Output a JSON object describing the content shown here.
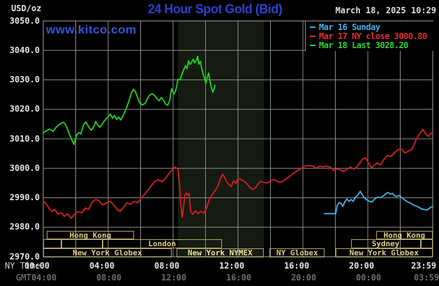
{
  "header": {
    "title": "24 Hour Spot Gold (Bid)",
    "title_color": "#2e3fd0",
    "datetime": "March 18, 2025 10:29",
    "unit": "USD/oz",
    "watermark": "www.kitco.com",
    "watermark_color": "#3a54d6"
  },
  "legend": {
    "items": [
      {
        "label": "Mar 16 Sunday",
        "color": "#41b2e8"
      },
      {
        "label": "Mar 17 NY close 3000.80",
        "color": "#e62c2c"
      },
      {
        "label": "Mar 18 Last 3028.20",
        "color": "#2fd32f"
      }
    ]
  },
  "axis": {
    "ny_label": "NY Time",
    "gmt_label": "GMT",
    "ny_ticks": [
      "00:00",
      "04:00",
      "08:00",
      "12:00",
      "16:00",
      "20:00",
      "23:59"
    ],
    "gmt_ticks": [
      "04:00",
      "08:00",
      "12:00",
      "16:00",
      "20:00",
      "00:00",
      "03:59"
    ]
  },
  "sessions": [
    {
      "row": 1,
      "label": "Hong Kong",
      "start_hour": 0.2,
      "end_hour": 5.6
    },
    {
      "row": 1,
      "label": "Hong Kong",
      "start_hour": 20.5,
      "end_hour": 24
    },
    {
      "row": 2,
      "label": "",
      "start_hour": 0,
      "end_hour": 1.1
    },
    {
      "row": 2,
      "label": "",
      "start_hour": 1.1,
      "end_hour": 3.65
    },
    {
      "row": 2,
      "label": "London",
      "start_hour": 3.65,
      "end_hour": 11.0
    },
    {
      "row": 2,
      "label": "Sydney",
      "start_hour": 18.95,
      "end_hour": 23.25
    },
    {
      "row": 2,
      "label": "",
      "start_hour": 23.25,
      "end_hour": 24
    },
    {
      "row": 3,
      "label": "New York Globex",
      "start_hour": 0,
      "end_hour": 7.9
    },
    {
      "row": 3,
      "label": "New York NYMEX",
      "start_hour": 8.2,
      "end_hour": 13.6,
      "highlight": true
    },
    {
      "row": 3,
      "label": "NY Globex",
      "start_hour": 13.95,
      "end_hour": 17.35
    },
    {
      "row": 3,
      "label": "New York Globex",
      "start_hour": 18.0,
      "end_hour": 24
    }
  ],
  "chart_data": {
    "type": "line",
    "title": "24 Hour Spot Gold (Bid)",
    "xlabel": "NY Time",
    "ylabel": "USD/oz",
    "x_range_hours": [
      0,
      24
    ],
    "x_tick_hours": [
      0,
      4,
      8,
      12,
      16,
      20,
      24
    ],
    "grid_x_interval_hours": 2,
    "grid_y_interval": 10,
    "grid_color": "#8c8c8c",
    "ylim": [
      2970,
      3050
    ],
    "yticks": [
      3050.0,
      3040.0,
      3030.0,
      3020.0,
      3010.0,
      3000.0,
      2990.0,
      2980.0,
      2970.0
    ],
    "highlight_band_hours": [
      8.3,
      13.6
    ],
    "highlight_band_color": "#151b11",
    "legend_position": "top-right",
    "series": [
      {
        "name": "Mar 16 Sunday",
        "color": "#45b4e6",
        "points": [
          [
            17.33,
            2984.6
          ],
          [
            18.02,
            2984.6
          ],
          [
            18.11,
            2987.3
          ],
          [
            18.24,
            2988.4
          ],
          [
            18.37,
            2988.0
          ],
          [
            18.45,
            2987.0
          ],
          [
            18.58,
            2988.6
          ],
          [
            18.71,
            2989.6
          ],
          [
            18.84,
            2988.8
          ],
          [
            18.97,
            2989.4
          ],
          [
            19.1,
            2988.8
          ],
          [
            19.23,
            2990.2
          ],
          [
            19.4,
            2991.0
          ],
          [
            19.53,
            2992.2
          ],
          [
            19.66,
            2991.0
          ],
          [
            19.78,
            2990.0
          ],
          [
            19.91,
            2989.4
          ],
          [
            20.09,
            2988.8
          ],
          [
            20.26,
            2988.6
          ],
          [
            20.43,
            2989.6
          ],
          [
            20.6,
            2990.2
          ],
          [
            20.77,
            2990.0
          ],
          [
            20.95,
            2990.6
          ],
          [
            21.12,
            2991.4
          ],
          [
            21.25,
            2991.8
          ],
          [
            21.38,
            2991.2
          ],
          [
            21.51,
            2991.5
          ],
          [
            21.63,
            2990.8
          ],
          [
            21.76,
            2990.4
          ],
          [
            21.94,
            2990.8
          ],
          [
            22.11,
            2990.0
          ],
          [
            22.28,
            2989.2
          ],
          [
            22.45,
            2988.6
          ],
          [
            22.62,
            2988.2
          ],
          [
            22.8,
            2987.6
          ],
          [
            22.97,
            2987.2
          ],
          [
            23.14,
            2986.8
          ],
          [
            23.31,
            2986.2
          ],
          [
            23.48,
            2986.0
          ],
          [
            23.66,
            2985.8
          ],
          [
            23.78,
            2986.4
          ],
          [
            23.91,
            2986.9
          ],
          [
            24,
            2987.0
          ]
        ]
      },
      {
        "name": "Mar 17 NY close 3000.80",
        "color": "#dd1c1c",
        "points": [
          [
            0,
            2988.9
          ],
          [
            0.22,
            2987.6
          ],
          [
            0.34,
            2986.5
          ],
          [
            0.56,
            2985.3
          ],
          [
            0.69,
            2986.1
          ],
          [
            0.9,
            2984.5
          ],
          [
            1.12,
            2984.9
          ],
          [
            1.29,
            2983.7
          ],
          [
            1.51,
            2984.5
          ],
          [
            1.72,
            2983.0
          ],
          [
            1.94,
            2984.5
          ],
          [
            2.15,
            2985.3
          ],
          [
            2.37,
            2984.9
          ],
          [
            2.58,
            2986.5
          ],
          [
            2.8,
            2986.1
          ],
          [
            3.01,
            2988.5
          ],
          [
            3.23,
            2989.4
          ],
          [
            3.44,
            2989.0
          ],
          [
            3.66,
            2987.6
          ],
          [
            3.87,
            2988.2
          ],
          [
            4.13,
            2988.8
          ],
          [
            4.34,
            2987.5
          ],
          [
            4.56,
            2986.0
          ],
          [
            4.73,
            2985.4
          ],
          [
            4.95,
            2986.8
          ],
          [
            5.16,
            2988.3
          ],
          [
            5.38,
            2987.8
          ],
          [
            5.59,
            2988.8
          ],
          [
            5.81,
            2988.3
          ],
          [
            6.06,
            2990.0
          ],
          [
            6.37,
            2992.0
          ],
          [
            6.67,
            2994.2
          ],
          [
            6.88,
            2995.6
          ],
          [
            7.1,
            2996.1
          ],
          [
            7.31,
            2995.4
          ],
          [
            7.53,
            2996.6
          ],
          [
            7.74,
            2998.2
          ],
          [
            7.96,
            2999.6
          ],
          [
            8.13,
            3000.4
          ],
          [
            8.3,
            2999.8
          ],
          [
            8.39,
            2995.0
          ],
          [
            8.47,
            2988.0
          ],
          [
            8.56,
            2983.4
          ],
          [
            8.65,
            2987.0
          ],
          [
            8.73,
            2991.0
          ],
          [
            8.82,
            2991.6
          ],
          [
            8.9,
            2990.8
          ],
          [
            8.99,
            2991.5
          ],
          [
            9.08,
            2985.5
          ],
          [
            9.2,
            2984.4
          ],
          [
            9.38,
            2985.6
          ],
          [
            9.55,
            2984.6
          ],
          [
            9.72,
            2985.4
          ],
          [
            9.89,
            2984.8
          ],
          [
            10.06,
            2986.5
          ],
          [
            10.24,
            2989.5
          ],
          [
            10.41,
            2991.0
          ],
          [
            10.58,
            2992.3
          ],
          [
            10.75,
            2993.8
          ],
          [
            10.92,
            2996.5
          ],
          [
            11.05,
            2998.0
          ],
          [
            11.18,
            2996.8
          ],
          [
            11.35,
            2995.0
          ],
          [
            11.57,
            2993.8
          ],
          [
            11.74,
            2995.8
          ],
          [
            11.87,
            2994.8
          ],
          [
            12.0,
            2996.6
          ],
          [
            12.17,
            2996.2
          ],
          [
            12.39,
            2995.6
          ],
          [
            12.6,
            2994.4
          ],
          [
            12.73,
            2993.6
          ],
          [
            12.9,
            2992.8
          ],
          [
            13.08,
            2993.4
          ],
          [
            13.25,
            2994.8
          ],
          [
            13.42,
            2995.6
          ],
          [
            13.59,
            2995.2
          ],
          [
            13.81,
            2995.0
          ],
          [
            14.02,
            2995.8
          ],
          [
            14.24,
            2996.2
          ],
          [
            14.45,
            2995.4
          ],
          [
            14.67,
            2995.3
          ],
          [
            14.88,
            2996.1
          ],
          [
            15.1,
            2996.9
          ],
          [
            15.31,
            2997.9
          ],
          [
            15.53,
            2998.7
          ],
          [
            15.74,
            2999.5
          ],
          [
            15.96,
            3000.2
          ],
          [
            16.17,
            3000.8
          ],
          [
            16.43,
            3000.9
          ],
          [
            16.65,
            3000.7
          ],
          [
            16.82,
            3000.0
          ],
          [
            17.03,
            3000.7
          ],
          [
            17.25,
            3000.5
          ],
          [
            17.46,
            3000.7
          ],
          [
            17.68,
            3000.4
          ],
          [
            17.89,
            2999.3
          ],
          [
            18.11,
            2999.8
          ],
          [
            18.32,
            2999.4
          ],
          [
            18.49,
            2999.0
          ],
          [
            18.71,
            2999.6
          ],
          [
            18.92,
            3000.4
          ],
          [
            19.14,
            2999.7
          ],
          [
            19.35,
            3000.6
          ],
          [
            19.53,
            3002.0
          ],
          [
            19.7,
            3003.2
          ],
          [
            19.87,
            3003.5
          ],
          [
            20.04,
            3001.8
          ],
          [
            20.22,
            3000.2
          ],
          [
            20.39,
            3001.0
          ],
          [
            20.56,
            3001.8
          ],
          [
            20.77,
            3001.2
          ],
          [
            20.99,
            3003.0
          ],
          [
            21.2,
            3004.3
          ],
          [
            21.42,
            3004.0
          ],
          [
            21.63,
            3005.2
          ],
          [
            21.85,
            3006.3
          ],
          [
            22.06,
            3006.6
          ],
          [
            22.28,
            3005.2
          ],
          [
            22.49,
            3005.8
          ],
          [
            22.71,
            3006.4
          ],
          [
            22.88,
            3008.5
          ],
          [
            23.05,
            3010.5
          ],
          [
            23.23,
            3012.0
          ],
          [
            23.4,
            3013.2
          ],
          [
            23.57,
            3011.6
          ],
          [
            23.74,
            3010.8
          ],
          [
            23.87,
            3011.8
          ],
          [
            24,
            3012.0
          ]
        ]
      },
      {
        "name": "Mar 18 Last 3028.20",
        "color": "#21d421",
        "points": [
          [
            0,
            3012.1
          ],
          [
            0.22,
            3012.8
          ],
          [
            0.39,
            3013.3
          ],
          [
            0.6,
            3012.5
          ],
          [
            0.77,
            3013.8
          ],
          [
            0.9,
            3014.5
          ],
          [
            1.2,
            3015.6
          ],
          [
            1.33,
            3015.2
          ],
          [
            1.46,
            3013.7
          ],
          [
            1.68,
            3010.6
          ],
          [
            1.85,
            3008.6
          ],
          [
            1.89,
            3008.1
          ],
          [
            2.06,
            3011.3
          ],
          [
            2.19,
            3012.1
          ],
          [
            2.32,
            3011.7
          ],
          [
            2.49,
            3014.9
          ],
          [
            2.62,
            3015.7
          ],
          [
            2.84,
            3013.7
          ],
          [
            2.97,
            3012.9
          ],
          [
            3.14,
            3014.5
          ],
          [
            3.23,
            3015.9
          ],
          [
            3.35,
            3014.7
          ],
          [
            3.48,
            3013.9
          ],
          [
            3.61,
            3014.8
          ],
          [
            3.78,
            3016.2
          ],
          [
            3.96,
            3017.3
          ],
          [
            4.13,
            3018.4
          ],
          [
            4.26,
            3017.0
          ],
          [
            4.39,
            3017.9
          ],
          [
            4.52,
            3016.6
          ],
          [
            4.65,
            3017.4
          ],
          [
            4.77,
            3016.4
          ],
          [
            4.9,
            3017.6
          ],
          [
            5.03,
            3019.2
          ],
          [
            5.16,
            3021.0
          ],
          [
            5.29,
            3023.0
          ],
          [
            5.42,
            3025.4
          ],
          [
            5.55,
            3026.8
          ],
          [
            5.68,
            3026.0
          ],
          [
            5.81,
            3024.0
          ],
          [
            5.94,
            3022.2
          ],
          [
            6.11,
            3021.5
          ],
          [
            6.28,
            3022.0
          ],
          [
            6.41,
            3023.5
          ],
          [
            6.54,
            3024.8
          ],
          [
            6.71,
            3025.3
          ],
          [
            6.88,
            3024.6
          ],
          [
            7.01,
            3023.6
          ],
          [
            7.14,
            3022.9
          ],
          [
            7.27,
            3024.0
          ],
          [
            7.4,
            3023.2
          ],
          [
            7.53,
            3021.8
          ],
          [
            7.66,
            3021.4
          ],
          [
            7.78,
            3022.8
          ],
          [
            7.91,
            3027.0
          ],
          [
            8.04,
            3025.2
          ],
          [
            8.17,
            3026.5
          ],
          [
            8.3,
            3030.2
          ],
          [
            8.43,
            3030.0
          ],
          [
            8.52,
            3031.5
          ],
          [
            8.65,
            3033.4
          ],
          [
            8.77,
            3034.8
          ],
          [
            8.86,
            3033.8
          ],
          [
            8.95,
            3036.5
          ],
          [
            9.03,
            3035.2
          ],
          [
            9.12,
            3035.8
          ],
          [
            9.25,
            3037.0
          ],
          [
            9.33,
            3035.8
          ],
          [
            9.42,
            3036.4
          ],
          [
            9.51,
            3038.0
          ],
          [
            9.59,
            3035.3
          ],
          [
            9.68,
            3036.3
          ],
          [
            9.76,
            3034.0
          ],
          [
            9.85,
            3032.0
          ],
          [
            9.94,
            3030.5
          ],
          [
            10.02,
            3028.8
          ],
          [
            10.11,
            3031.0
          ],
          [
            10.19,
            3032.3
          ],
          [
            10.28,
            3029.3
          ],
          [
            10.37,
            3027.2
          ],
          [
            10.45,
            3025.8
          ],
          [
            10.54,
            3027.2
          ],
          [
            10.58,
            3028.2
          ]
        ]
      }
    ]
  }
}
